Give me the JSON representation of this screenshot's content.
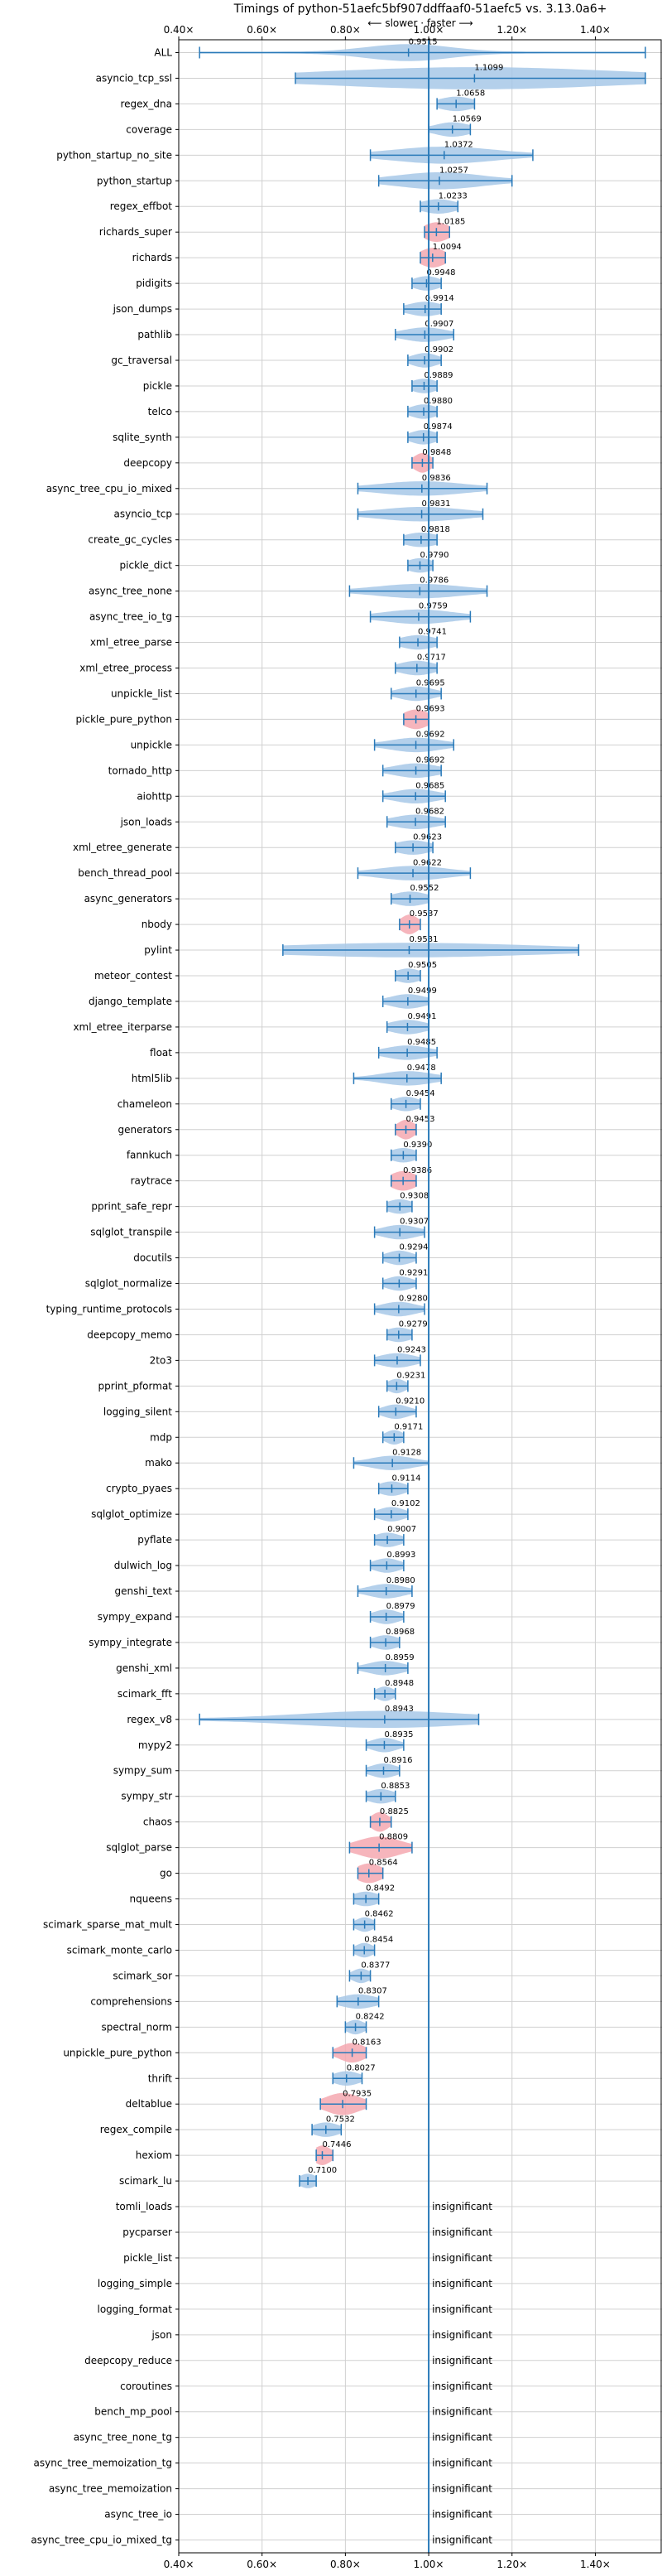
{
  "chart_data": {
    "type": "violin",
    "title": "Timings of python-51aefc5bf907ddffaaf0-51aefc5 vs. 3.13.0a6+",
    "subtitle": "⟵ slower · faster ⟶",
    "xlim": [
      0.4,
      1.56
    ],
    "xticks": [
      0.4,
      0.6,
      0.8,
      1.0,
      1.2,
      1.4
    ],
    "xtick_labels": [
      "0.40×",
      "0.60×",
      "0.80×",
      "1.00×",
      "1.20×",
      "1.40×"
    ],
    "grid": true,
    "significant_color": "#a7c8e8",
    "regression_color": "#f4a8b0",
    "line_color": "#2a7ab9",
    "benchmarks": [
      {
        "name": "ALL",
        "value": 0.9515,
        "lo": 0.45,
        "hi": 1.52,
        "spread": 0.1,
        "width": 0.6,
        "sig": "blue"
      },
      {
        "name": "asyncio_tcp_ssl",
        "value": 1.1099,
        "lo": 0.68,
        "hi": 1.52,
        "spread": 0.35,
        "width": 0.8,
        "sig": "blue"
      },
      {
        "name": "regex_dna",
        "value": 1.0658,
        "lo": 1.02,
        "hi": 1.11,
        "spread": 0.04,
        "width": 0.5,
        "sig": "blue"
      },
      {
        "name": "coverage",
        "value": 1.0569,
        "lo": 1.0,
        "hi": 1.1,
        "spread": 0.04,
        "width": 0.5,
        "sig": "blue"
      },
      {
        "name": "python_startup_no_site",
        "value": 1.0372,
        "lo": 0.86,
        "hi": 1.25,
        "spread": 0.12,
        "width": 0.6,
        "sig": "blue"
      },
      {
        "name": "python_startup",
        "value": 1.0257,
        "lo": 0.88,
        "hi": 1.2,
        "spread": 0.1,
        "width": 0.6,
        "sig": "blue"
      },
      {
        "name": "regex_effbot",
        "value": 1.0233,
        "lo": 0.98,
        "hi": 1.07,
        "spread": 0.04,
        "width": 0.5,
        "sig": "blue"
      },
      {
        "name": "richards_super",
        "value": 1.0185,
        "lo": 0.99,
        "hi": 1.05,
        "spread": 0.03,
        "width": 0.7,
        "sig": "red"
      },
      {
        "name": "richards",
        "value": 1.0094,
        "lo": 0.98,
        "hi": 1.04,
        "spread": 0.03,
        "width": 0.7,
        "sig": "red"
      },
      {
        "name": "pidigits",
        "value": 0.9948,
        "lo": 0.96,
        "hi": 1.03,
        "spread": 0.03,
        "width": 0.5,
        "sig": "blue"
      },
      {
        "name": "json_dumps",
        "value": 0.9914,
        "lo": 0.94,
        "hi": 1.03,
        "spread": 0.04,
        "width": 0.5,
        "sig": "blue"
      },
      {
        "name": "pathlib",
        "value": 0.9907,
        "lo": 0.92,
        "hi": 1.06,
        "spread": 0.05,
        "width": 0.5,
        "sig": "blue"
      },
      {
        "name": "gc_traversal",
        "value": 0.9902,
        "lo": 0.95,
        "hi": 1.03,
        "spread": 0.03,
        "width": 0.5,
        "sig": "blue"
      },
      {
        "name": "pickle",
        "value": 0.9889,
        "lo": 0.96,
        "hi": 1.02,
        "spread": 0.03,
        "width": 0.5,
        "sig": "blue"
      },
      {
        "name": "telco",
        "value": 0.988,
        "lo": 0.95,
        "hi": 1.02,
        "spread": 0.03,
        "width": 0.5,
        "sig": "blue"
      },
      {
        "name": "sqlite_synth",
        "value": 0.9874,
        "lo": 0.95,
        "hi": 1.02,
        "spread": 0.03,
        "width": 0.5,
        "sig": "blue"
      },
      {
        "name": "deepcopy",
        "value": 0.9848,
        "lo": 0.96,
        "hi": 1.01,
        "spread": 0.02,
        "width": 0.7,
        "sig": "red"
      },
      {
        "name": "async_tree_cpu_io_mixed",
        "value": 0.9836,
        "lo": 0.83,
        "hi": 1.14,
        "spread": 0.1,
        "width": 0.5,
        "sig": "blue"
      },
      {
        "name": "asyncio_tcp",
        "value": 0.9831,
        "lo": 0.83,
        "hi": 1.13,
        "spread": 0.1,
        "width": 0.5,
        "sig": "blue"
      },
      {
        "name": "create_gc_cycles",
        "value": 0.9818,
        "lo": 0.94,
        "hi": 1.02,
        "spread": 0.04,
        "width": 0.5,
        "sig": "blue"
      },
      {
        "name": "pickle_dict",
        "value": 0.979,
        "lo": 0.95,
        "hi": 1.01,
        "spread": 0.03,
        "width": 0.5,
        "sig": "blue"
      },
      {
        "name": "async_tree_none",
        "value": 0.9786,
        "lo": 0.81,
        "hi": 1.14,
        "spread": 0.1,
        "width": 0.5,
        "sig": "blue"
      },
      {
        "name": "async_tree_io_tg",
        "value": 0.9759,
        "lo": 0.86,
        "hi": 1.1,
        "spread": 0.08,
        "width": 0.5,
        "sig": "blue"
      },
      {
        "name": "xml_etree_parse",
        "value": 0.9741,
        "lo": 0.93,
        "hi": 1.02,
        "spread": 0.04,
        "width": 0.5,
        "sig": "blue"
      },
      {
        "name": "xml_etree_process",
        "value": 0.9717,
        "lo": 0.92,
        "hi": 1.02,
        "spread": 0.04,
        "width": 0.5,
        "sig": "blue"
      },
      {
        "name": "unpickle_list",
        "value": 0.9695,
        "lo": 0.91,
        "hi": 1.03,
        "spread": 0.04,
        "width": 0.5,
        "sig": "blue"
      },
      {
        "name": "pickle_pure_python",
        "value": 0.9693,
        "lo": 0.94,
        "hi": 1.0,
        "spread": 0.03,
        "width": 0.7,
        "sig": "red"
      },
      {
        "name": "unpickle",
        "value": 0.9692,
        "lo": 0.87,
        "hi": 1.06,
        "spread": 0.06,
        "width": 0.5,
        "sig": "blue"
      },
      {
        "name": "tornado_http",
        "value": 0.9692,
        "lo": 0.89,
        "hi": 1.03,
        "spread": 0.05,
        "width": 0.5,
        "sig": "blue"
      },
      {
        "name": "aiohttp",
        "value": 0.9685,
        "lo": 0.89,
        "hi": 1.04,
        "spread": 0.05,
        "width": 0.5,
        "sig": "blue"
      },
      {
        "name": "json_loads",
        "value": 0.9682,
        "lo": 0.9,
        "hi": 1.04,
        "spread": 0.05,
        "width": 0.5,
        "sig": "blue"
      },
      {
        "name": "xml_etree_generate",
        "value": 0.9623,
        "lo": 0.92,
        "hi": 1.01,
        "spread": 0.04,
        "width": 0.5,
        "sig": "blue"
      },
      {
        "name": "bench_thread_pool",
        "value": 0.9622,
        "lo": 0.83,
        "hi": 1.1,
        "spread": 0.08,
        "width": 0.5,
        "sig": "blue"
      },
      {
        "name": "async_generators",
        "value": 0.9552,
        "lo": 0.91,
        "hi": 1.0,
        "spread": 0.04,
        "width": 0.5,
        "sig": "blue"
      },
      {
        "name": "nbody",
        "value": 0.9537,
        "lo": 0.93,
        "hi": 0.98,
        "spread": 0.02,
        "width": 0.7,
        "sig": "red"
      },
      {
        "name": "pylint",
        "value": 0.9531,
        "lo": 0.65,
        "hi": 1.36,
        "spread": 0.3,
        "width": 0.5,
        "sig": "blue"
      },
      {
        "name": "meteor_contest",
        "value": 0.9505,
        "lo": 0.92,
        "hi": 0.98,
        "spread": 0.03,
        "width": 0.5,
        "sig": "blue"
      },
      {
        "name": "django_template",
        "value": 0.9499,
        "lo": 0.89,
        "hi": 1.0,
        "spread": 0.04,
        "width": 0.5,
        "sig": "blue"
      },
      {
        "name": "xml_etree_iterparse",
        "value": 0.9491,
        "lo": 0.9,
        "hi": 1.0,
        "spread": 0.04,
        "width": 0.5,
        "sig": "blue"
      },
      {
        "name": "float",
        "value": 0.9485,
        "lo": 0.88,
        "hi": 1.02,
        "spread": 0.05,
        "width": 0.5,
        "sig": "blue"
      },
      {
        "name": "html5lib",
        "value": 0.9478,
        "lo": 0.82,
        "hi": 1.03,
        "spread": 0.06,
        "width": 0.5,
        "sig": "blue"
      },
      {
        "name": "chameleon",
        "value": 0.9454,
        "lo": 0.91,
        "hi": 0.98,
        "spread": 0.03,
        "width": 0.5,
        "sig": "blue"
      },
      {
        "name": "generators",
        "value": 0.9453,
        "lo": 0.92,
        "hi": 0.97,
        "spread": 0.02,
        "width": 0.7,
        "sig": "red"
      },
      {
        "name": "fannkuch",
        "value": 0.939,
        "lo": 0.91,
        "hi": 0.97,
        "spread": 0.03,
        "width": 0.5,
        "sig": "blue"
      },
      {
        "name": "raytrace",
        "value": 0.9386,
        "lo": 0.91,
        "hi": 0.97,
        "spread": 0.03,
        "width": 0.7,
        "sig": "red"
      },
      {
        "name": "pprint_safe_repr",
        "value": 0.9308,
        "lo": 0.9,
        "hi": 0.96,
        "spread": 0.03,
        "width": 0.5,
        "sig": "blue"
      },
      {
        "name": "sqlglot_transpile",
        "value": 0.9307,
        "lo": 0.87,
        "hi": 0.99,
        "spread": 0.04,
        "width": 0.5,
        "sig": "blue"
      },
      {
        "name": "docutils",
        "value": 0.9294,
        "lo": 0.89,
        "hi": 0.97,
        "spread": 0.03,
        "width": 0.5,
        "sig": "blue"
      },
      {
        "name": "sqlglot_normalize",
        "value": 0.9291,
        "lo": 0.89,
        "hi": 0.97,
        "spread": 0.03,
        "width": 0.5,
        "sig": "blue"
      },
      {
        "name": "typing_runtime_protocols",
        "value": 0.928,
        "lo": 0.87,
        "hi": 0.99,
        "spread": 0.04,
        "width": 0.5,
        "sig": "blue"
      },
      {
        "name": "deepcopy_memo",
        "value": 0.9279,
        "lo": 0.9,
        "hi": 0.96,
        "spread": 0.03,
        "width": 0.5,
        "sig": "blue"
      },
      {
        "name": "2to3",
        "value": 0.9243,
        "lo": 0.87,
        "hi": 0.98,
        "spread": 0.04,
        "width": 0.5,
        "sig": "blue"
      },
      {
        "name": "pprint_pformat",
        "value": 0.9231,
        "lo": 0.9,
        "hi": 0.95,
        "spread": 0.02,
        "width": 0.5,
        "sig": "blue"
      },
      {
        "name": "logging_silent",
        "value": 0.921,
        "lo": 0.88,
        "hi": 0.97,
        "spread": 0.03,
        "width": 0.5,
        "sig": "blue"
      },
      {
        "name": "mdp",
        "value": 0.9171,
        "lo": 0.89,
        "hi": 0.94,
        "spread": 0.02,
        "width": 0.5,
        "sig": "blue"
      },
      {
        "name": "mako",
        "value": 0.9128,
        "lo": 0.82,
        "hi": 1.0,
        "spread": 0.05,
        "width": 0.5,
        "sig": "blue"
      },
      {
        "name": "crypto_pyaes",
        "value": 0.9114,
        "lo": 0.88,
        "hi": 0.95,
        "spread": 0.03,
        "width": 0.5,
        "sig": "blue"
      },
      {
        "name": "sqlglot_optimize",
        "value": 0.9102,
        "lo": 0.87,
        "hi": 0.95,
        "spread": 0.03,
        "width": 0.5,
        "sig": "blue"
      },
      {
        "name": "pyflate",
        "value": 0.9007,
        "lo": 0.87,
        "hi": 0.94,
        "spread": 0.03,
        "width": 0.5,
        "sig": "blue"
      },
      {
        "name": "dulwich_log",
        "value": 0.8993,
        "lo": 0.86,
        "hi": 0.94,
        "spread": 0.03,
        "width": 0.5,
        "sig": "blue"
      },
      {
        "name": "genshi_text",
        "value": 0.898,
        "lo": 0.83,
        "hi": 0.96,
        "spread": 0.04,
        "width": 0.5,
        "sig": "blue"
      },
      {
        "name": "sympy_expand",
        "value": 0.8979,
        "lo": 0.86,
        "hi": 0.94,
        "spread": 0.03,
        "width": 0.5,
        "sig": "blue"
      },
      {
        "name": "sympy_integrate",
        "value": 0.8968,
        "lo": 0.86,
        "hi": 0.93,
        "spread": 0.03,
        "width": 0.5,
        "sig": "blue"
      },
      {
        "name": "genshi_xml",
        "value": 0.8959,
        "lo": 0.83,
        "hi": 0.95,
        "spread": 0.04,
        "width": 0.5,
        "sig": "blue"
      },
      {
        "name": "scimark_fft",
        "value": 0.8948,
        "lo": 0.87,
        "hi": 0.92,
        "spread": 0.02,
        "width": 0.5,
        "sig": "blue"
      },
      {
        "name": "regex_v8",
        "value": 0.8943,
        "lo": 0.45,
        "hi": 1.12,
        "spread": 0.2,
        "width": 0.6,
        "sig": "blue"
      },
      {
        "name": "mypy2",
        "value": 0.8935,
        "lo": 0.85,
        "hi": 0.94,
        "spread": 0.03,
        "width": 0.5,
        "sig": "blue"
      },
      {
        "name": "sympy_sum",
        "value": 0.8916,
        "lo": 0.85,
        "hi": 0.93,
        "spread": 0.03,
        "width": 0.5,
        "sig": "blue"
      },
      {
        "name": "sympy_str",
        "value": 0.8853,
        "lo": 0.85,
        "hi": 0.92,
        "spread": 0.03,
        "width": 0.5,
        "sig": "blue"
      },
      {
        "name": "chaos",
        "value": 0.8825,
        "lo": 0.86,
        "hi": 0.91,
        "spread": 0.02,
        "width": 0.7,
        "sig": "red"
      },
      {
        "name": "sqlglot_parse",
        "value": 0.8809,
        "lo": 0.81,
        "hi": 0.96,
        "spread": 0.05,
        "width": 0.8,
        "sig": "red"
      },
      {
        "name": "go",
        "value": 0.8564,
        "lo": 0.83,
        "hi": 0.89,
        "spread": 0.03,
        "width": 0.7,
        "sig": "red"
      },
      {
        "name": "nqueens",
        "value": 0.8492,
        "lo": 0.82,
        "hi": 0.88,
        "spread": 0.03,
        "width": 0.5,
        "sig": "blue"
      },
      {
        "name": "scimark_sparse_mat_mult",
        "value": 0.8462,
        "lo": 0.82,
        "hi": 0.87,
        "spread": 0.02,
        "width": 0.5,
        "sig": "blue"
      },
      {
        "name": "scimark_monte_carlo",
        "value": 0.8454,
        "lo": 0.82,
        "hi": 0.87,
        "spread": 0.02,
        "width": 0.5,
        "sig": "blue"
      },
      {
        "name": "scimark_sor",
        "value": 0.8377,
        "lo": 0.81,
        "hi": 0.86,
        "spread": 0.02,
        "width": 0.5,
        "sig": "blue"
      },
      {
        "name": "comprehensions",
        "value": 0.8307,
        "lo": 0.78,
        "hi": 0.88,
        "spread": 0.04,
        "width": 0.5,
        "sig": "blue"
      },
      {
        "name": "spectral_norm",
        "value": 0.8242,
        "lo": 0.8,
        "hi": 0.85,
        "spread": 0.02,
        "width": 0.5,
        "sig": "blue"
      },
      {
        "name": "unpickle_pure_python",
        "value": 0.8163,
        "lo": 0.77,
        "hi": 0.85,
        "spread": 0.03,
        "width": 0.7,
        "sig": "red"
      },
      {
        "name": "thrift",
        "value": 0.8027,
        "lo": 0.77,
        "hi": 0.84,
        "spread": 0.03,
        "width": 0.5,
        "sig": "blue"
      },
      {
        "name": "deltablue",
        "value": 0.7935,
        "lo": 0.74,
        "hi": 0.85,
        "spread": 0.04,
        "width": 0.8,
        "sig": "red"
      },
      {
        "name": "regex_compile",
        "value": 0.7532,
        "lo": 0.72,
        "hi": 0.79,
        "spread": 0.03,
        "width": 0.5,
        "sig": "blue"
      },
      {
        "name": "hexiom",
        "value": 0.7446,
        "lo": 0.73,
        "hi": 0.77,
        "spread": 0.02,
        "width": 0.7,
        "sig": "red"
      },
      {
        "name": "scimark_lu",
        "value": 0.71,
        "lo": 0.69,
        "hi": 0.73,
        "spread": 0.02,
        "width": 0.5,
        "sig": "blue"
      },
      {
        "name": "tomli_loads",
        "insignificant": true
      },
      {
        "name": "pycparser",
        "insignificant": true
      },
      {
        "name": "pickle_list",
        "insignificant": true
      },
      {
        "name": "logging_simple",
        "insignificant": true
      },
      {
        "name": "logging_format",
        "insignificant": true
      },
      {
        "name": "json",
        "insignificant": true
      },
      {
        "name": "deepcopy_reduce",
        "insignificant": true
      },
      {
        "name": "coroutines",
        "insignificant": true
      },
      {
        "name": "bench_mp_pool",
        "insignificant": true
      },
      {
        "name": "async_tree_none_tg",
        "insignificant": true
      },
      {
        "name": "async_tree_memoization_tg",
        "insignificant": true
      },
      {
        "name": "async_tree_memoization",
        "insignificant": true
      },
      {
        "name": "async_tree_io",
        "insignificant": true
      },
      {
        "name": "async_tree_cpu_io_mixed_tg",
        "insignificant": true
      }
    ],
    "insignificant_label": "insignificant"
  }
}
